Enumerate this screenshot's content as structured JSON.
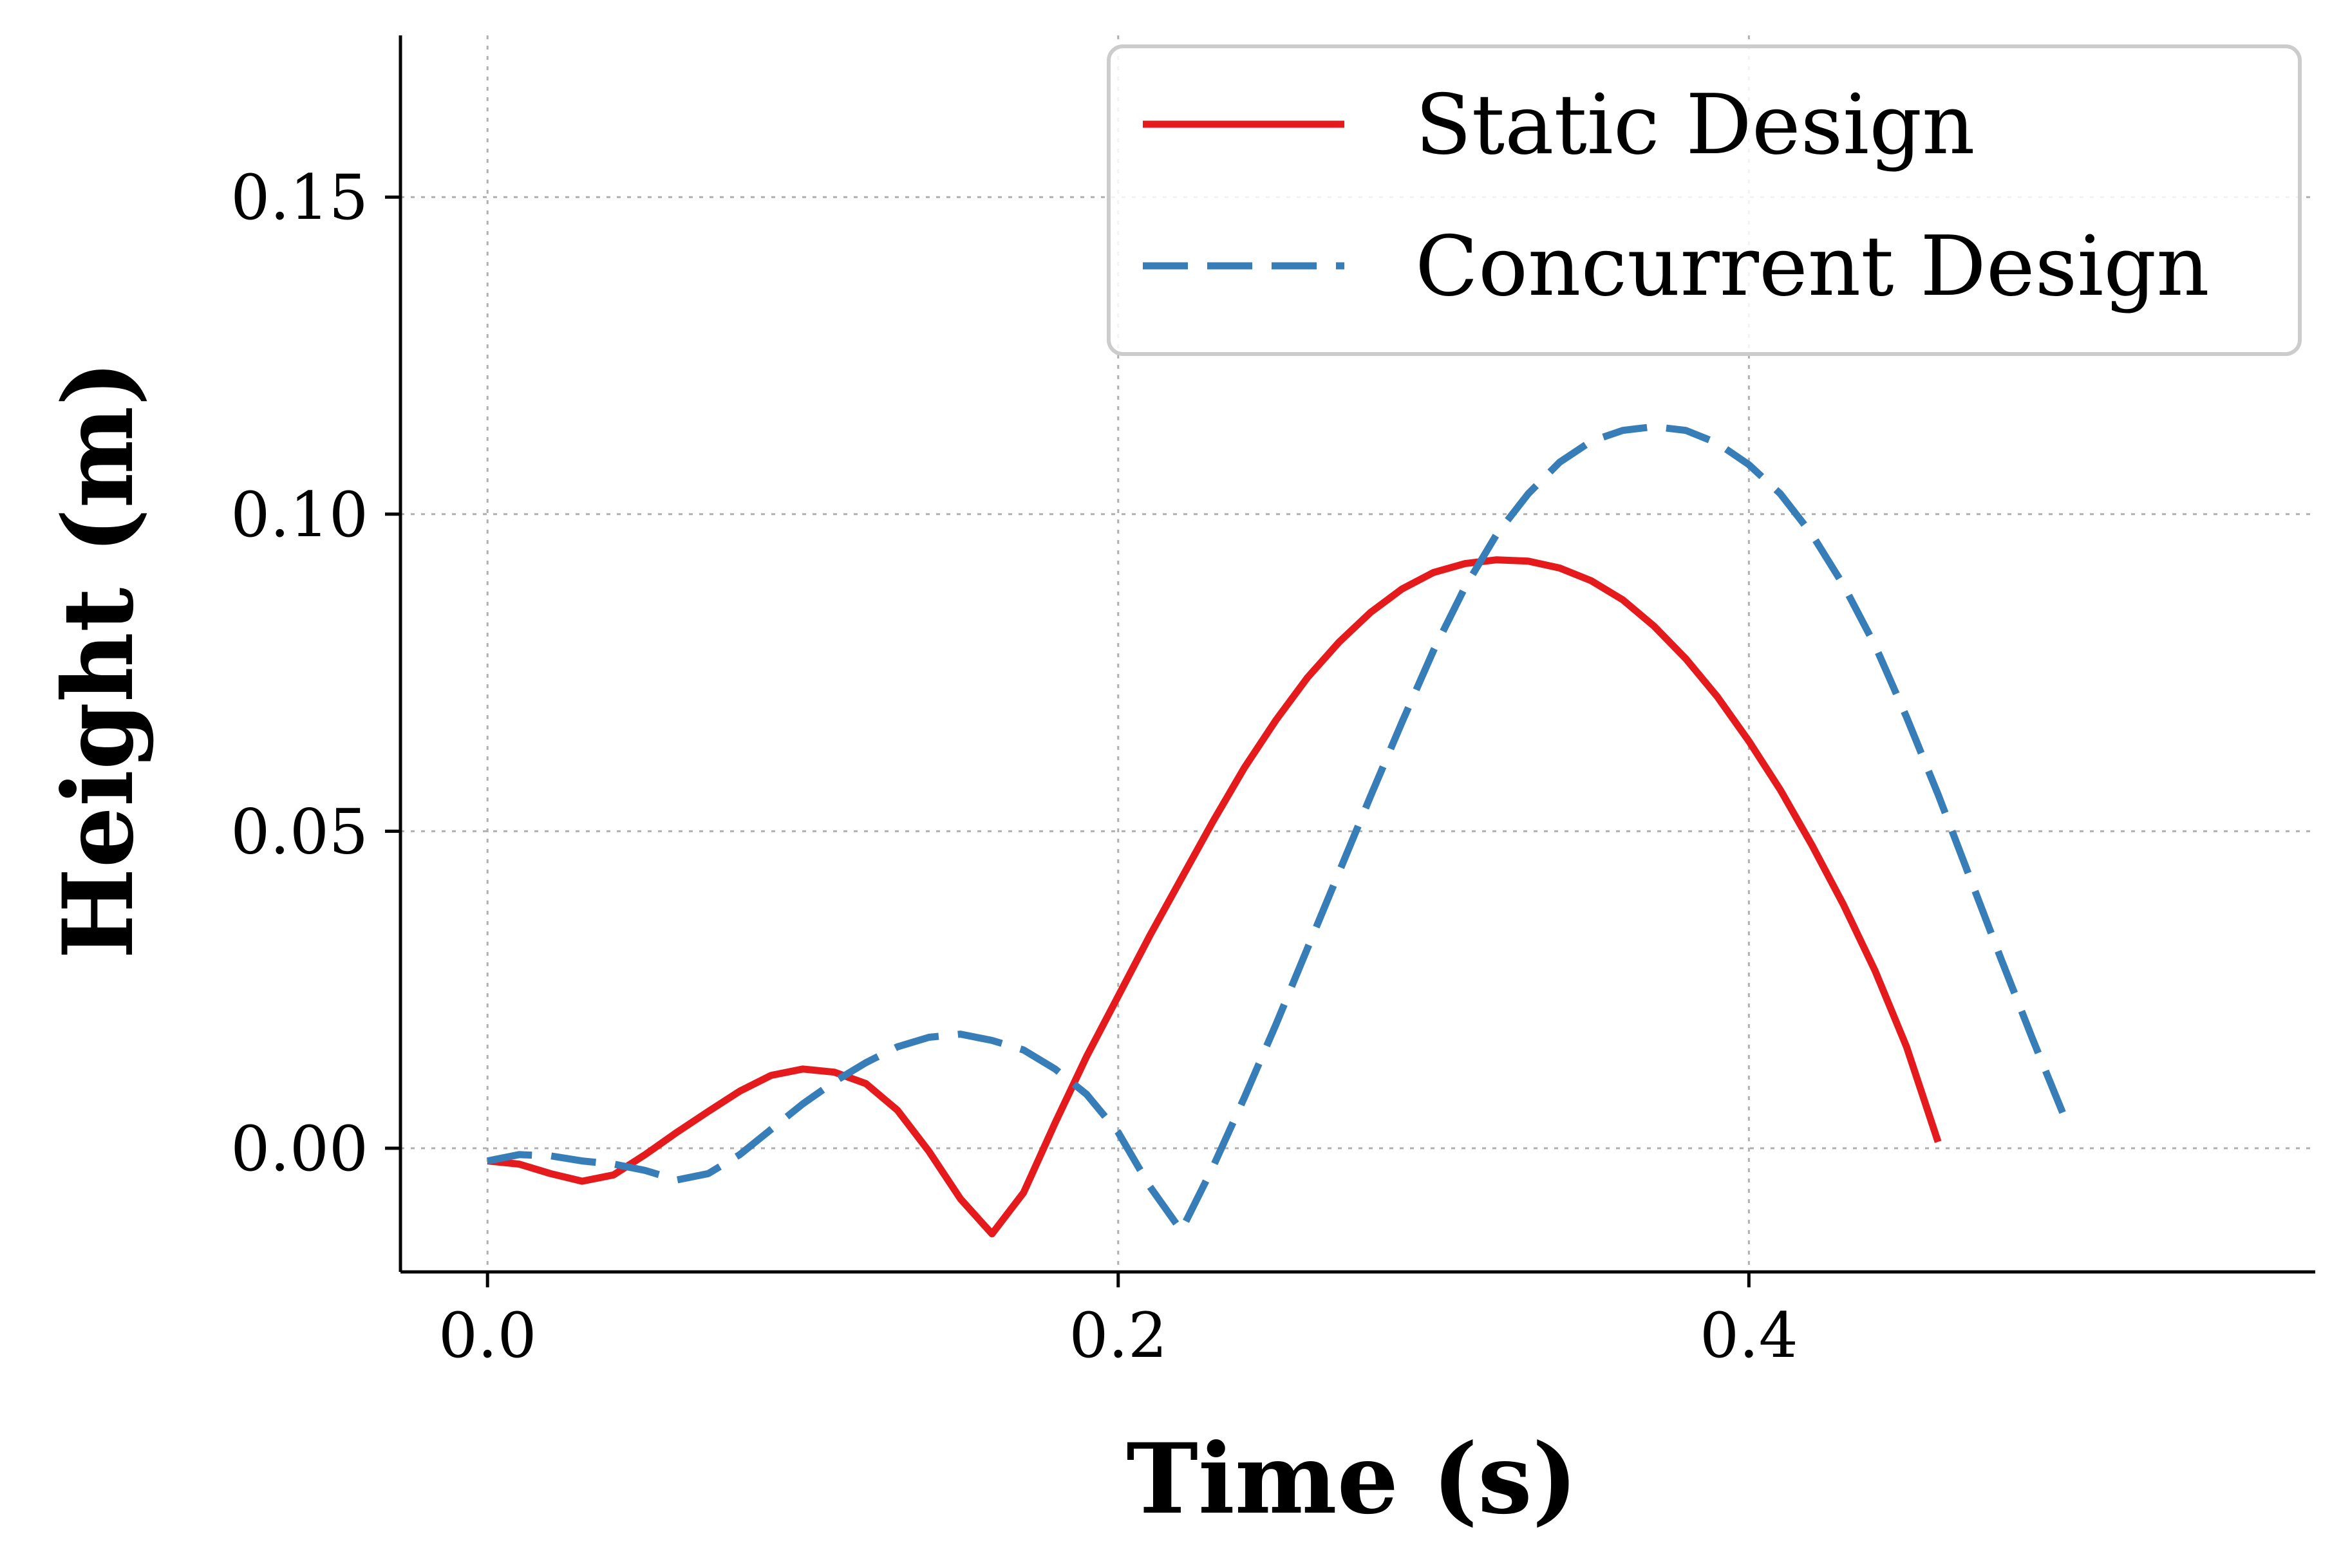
{
  "chart_data": {
    "type": "line",
    "xlabel": "Time (s)",
    "ylabel": "Height (m)",
    "xlim": [
      -0.0276,
      0.5796
    ],
    "ylim": [
      -0.0195,
      0.1755
    ],
    "xticks": [
      0.0,
      0.2,
      0.4
    ],
    "xtick_labels": [
      "0.0",
      "0.2",
      "0.4"
    ],
    "yticks": [
      0.0,
      0.05,
      0.1,
      0.15
    ],
    "ytick_labels": [
      "0.00",
      "0.05",
      "0.10",
      "0.15"
    ],
    "grid": true,
    "legend": "top-right",
    "series": [
      {
        "name": "Static Design",
        "color": "#e41a1c",
        "style": "solid",
        "x": [
          0.0,
          0.01,
          0.02,
          0.03,
          0.04,
          0.05,
          0.06,
          0.07,
          0.08,
          0.09,
          0.1,
          0.11,
          0.12,
          0.13,
          0.14,
          0.15,
          0.16,
          0.17,
          0.18,
          0.19,
          0.2,
          0.21,
          0.22,
          0.23,
          0.24,
          0.25,
          0.26,
          0.27,
          0.28,
          0.29,
          0.3,
          0.31,
          0.32,
          0.33,
          0.34,
          0.35,
          0.36,
          0.37,
          0.38,
          0.39,
          0.4,
          0.41,
          0.42,
          0.43,
          0.44,
          0.45,
          0.46
        ],
        "y": [
          -0.002,
          -0.0025,
          -0.004,
          -0.0052,
          -0.0042,
          -0.001,
          0.0025,
          0.0058,
          0.009,
          0.0115,
          0.0125,
          0.012,
          0.0102,
          0.006,
          -0.0005,
          -0.008,
          -0.0135,
          -0.007,
          0.004,
          0.0145,
          0.024,
          0.0335,
          0.0425,
          0.0515,
          0.06,
          0.0675,
          0.0742,
          0.0798,
          0.0845,
          0.0882,
          0.0908,
          0.0922,
          0.0928,
          0.0926,
          0.0915,
          0.0895,
          0.0865,
          0.0823,
          0.0772,
          0.0712,
          0.0642,
          0.0565,
          0.0478,
          0.0384,
          0.028,
          0.016,
          0.001
        ]
      },
      {
        "name": "Concurrent Design",
        "color": "#377eb8",
        "style": "dashed",
        "x": [
          0.0,
          0.01,
          0.02,
          0.03,
          0.04,
          0.05,
          0.06,
          0.07,
          0.08,
          0.09,
          0.1,
          0.11,
          0.12,
          0.13,
          0.14,
          0.15,
          0.16,
          0.17,
          0.18,
          0.19,
          0.2,
          0.21,
          0.22,
          0.23,
          0.24,
          0.25,
          0.26,
          0.27,
          0.28,
          0.29,
          0.3,
          0.31,
          0.32,
          0.33,
          0.34,
          0.35,
          0.36,
          0.37,
          0.38,
          0.39,
          0.4,
          0.41,
          0.42,
          0.43,
          0.44,
          0.45,
          0.46,
          0.47,
          0.48,
          0.49,
          0.5,
          0.51,
          0.52,
          0.53,
          0.54,
          0.55
        ],
        "y": [
          -0.002,
          -0.001,
          -0.0012,
          -0.002,
          -0.0025,
          -0.0035,
          -0.005,
          -0.004,
          -0.001,
          0.003,
          0.007,
          0.0105,
          0.0135,
          0.016,
          0.0175,
          0.018,
          0.017,
          0.0155,
          0.0125,
          0.0085,
          0.0025,
          -0.006,
          -0.013,
          -0.003,
          0.008,
          0.0195,
          0.0315,
          0.0435,
          0.0555,
          0.0672,
          0.0785,
          0.0885,
          0.0968,
          0.1032,
          0.1082,
          0.1115,
          0.1132,
          0.1138,
          0.1132,
          0.1112,
          0.1078,
          0.1032,
          0.0968,
          0.0888,
          0.0793,
          0.068,
          0.0558,
          0.0428,
          0.0298,
          0.0172,
          0.005,
          null,
          null,
          null,
          null,
          null
        ]
      }
    ]
  }
}
